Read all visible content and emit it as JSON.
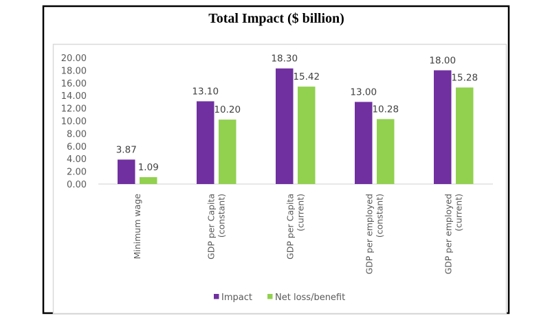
{
  "chart_data": {
    "type": "bar",
    "title": "Total Impact ($ billion)",
    "xlabel": "",
    "ylabel": "",
    "ylim": [
      0,
      20
    ],
    "yticks": [
      "0.00",
      "2.00",
      "4.00",
      "6.00",
      "8.00",
      "10.00",
      "12.00",
      "14.00",
      "16.00",
      "18.00",
      "20.00"
    ],
    "ytick_values": [
      0,
      2,
      4,
      6,
      8,
      10,
      12,
      14,
      16,
      18,
      20
    ],
    "grid": false,
    "legend_position": "bottom",
    "categories": [
      [
        "Minimum wage"
      ],
      [
        "GDP per Capita",
        "(constant)"
      ],
      [
        "GDP per Capita",
        "(current)"
      ],
      [
        "GDP per employed",
        "(constant)"
      ],
      [
        "GDP per employed",
        "(current)"
      ]
    ],
    "series": [
      {
        "name": "Impact",
        "color": "#7030A0",
        "values": [
          3.87,
          13.1,
          18.3,
          13.0,
          18.0
        ],
        "labels": [
          "3.87",
          "13.10",
          "18.30",
          "13.00",
          "18.00"
        ]
      },
      {
        "name": "Net loss/benefit",
        "color": "#92D050",
        "values": [
          1.09,
          10.2,
          15.42,
          10.28,
          15.28
        ],
        "labels": [
          "1.09",
          "10.20",
          "15.42",
          "10.28",
          "15.28"
        ]
      }
    ]
  }
}
